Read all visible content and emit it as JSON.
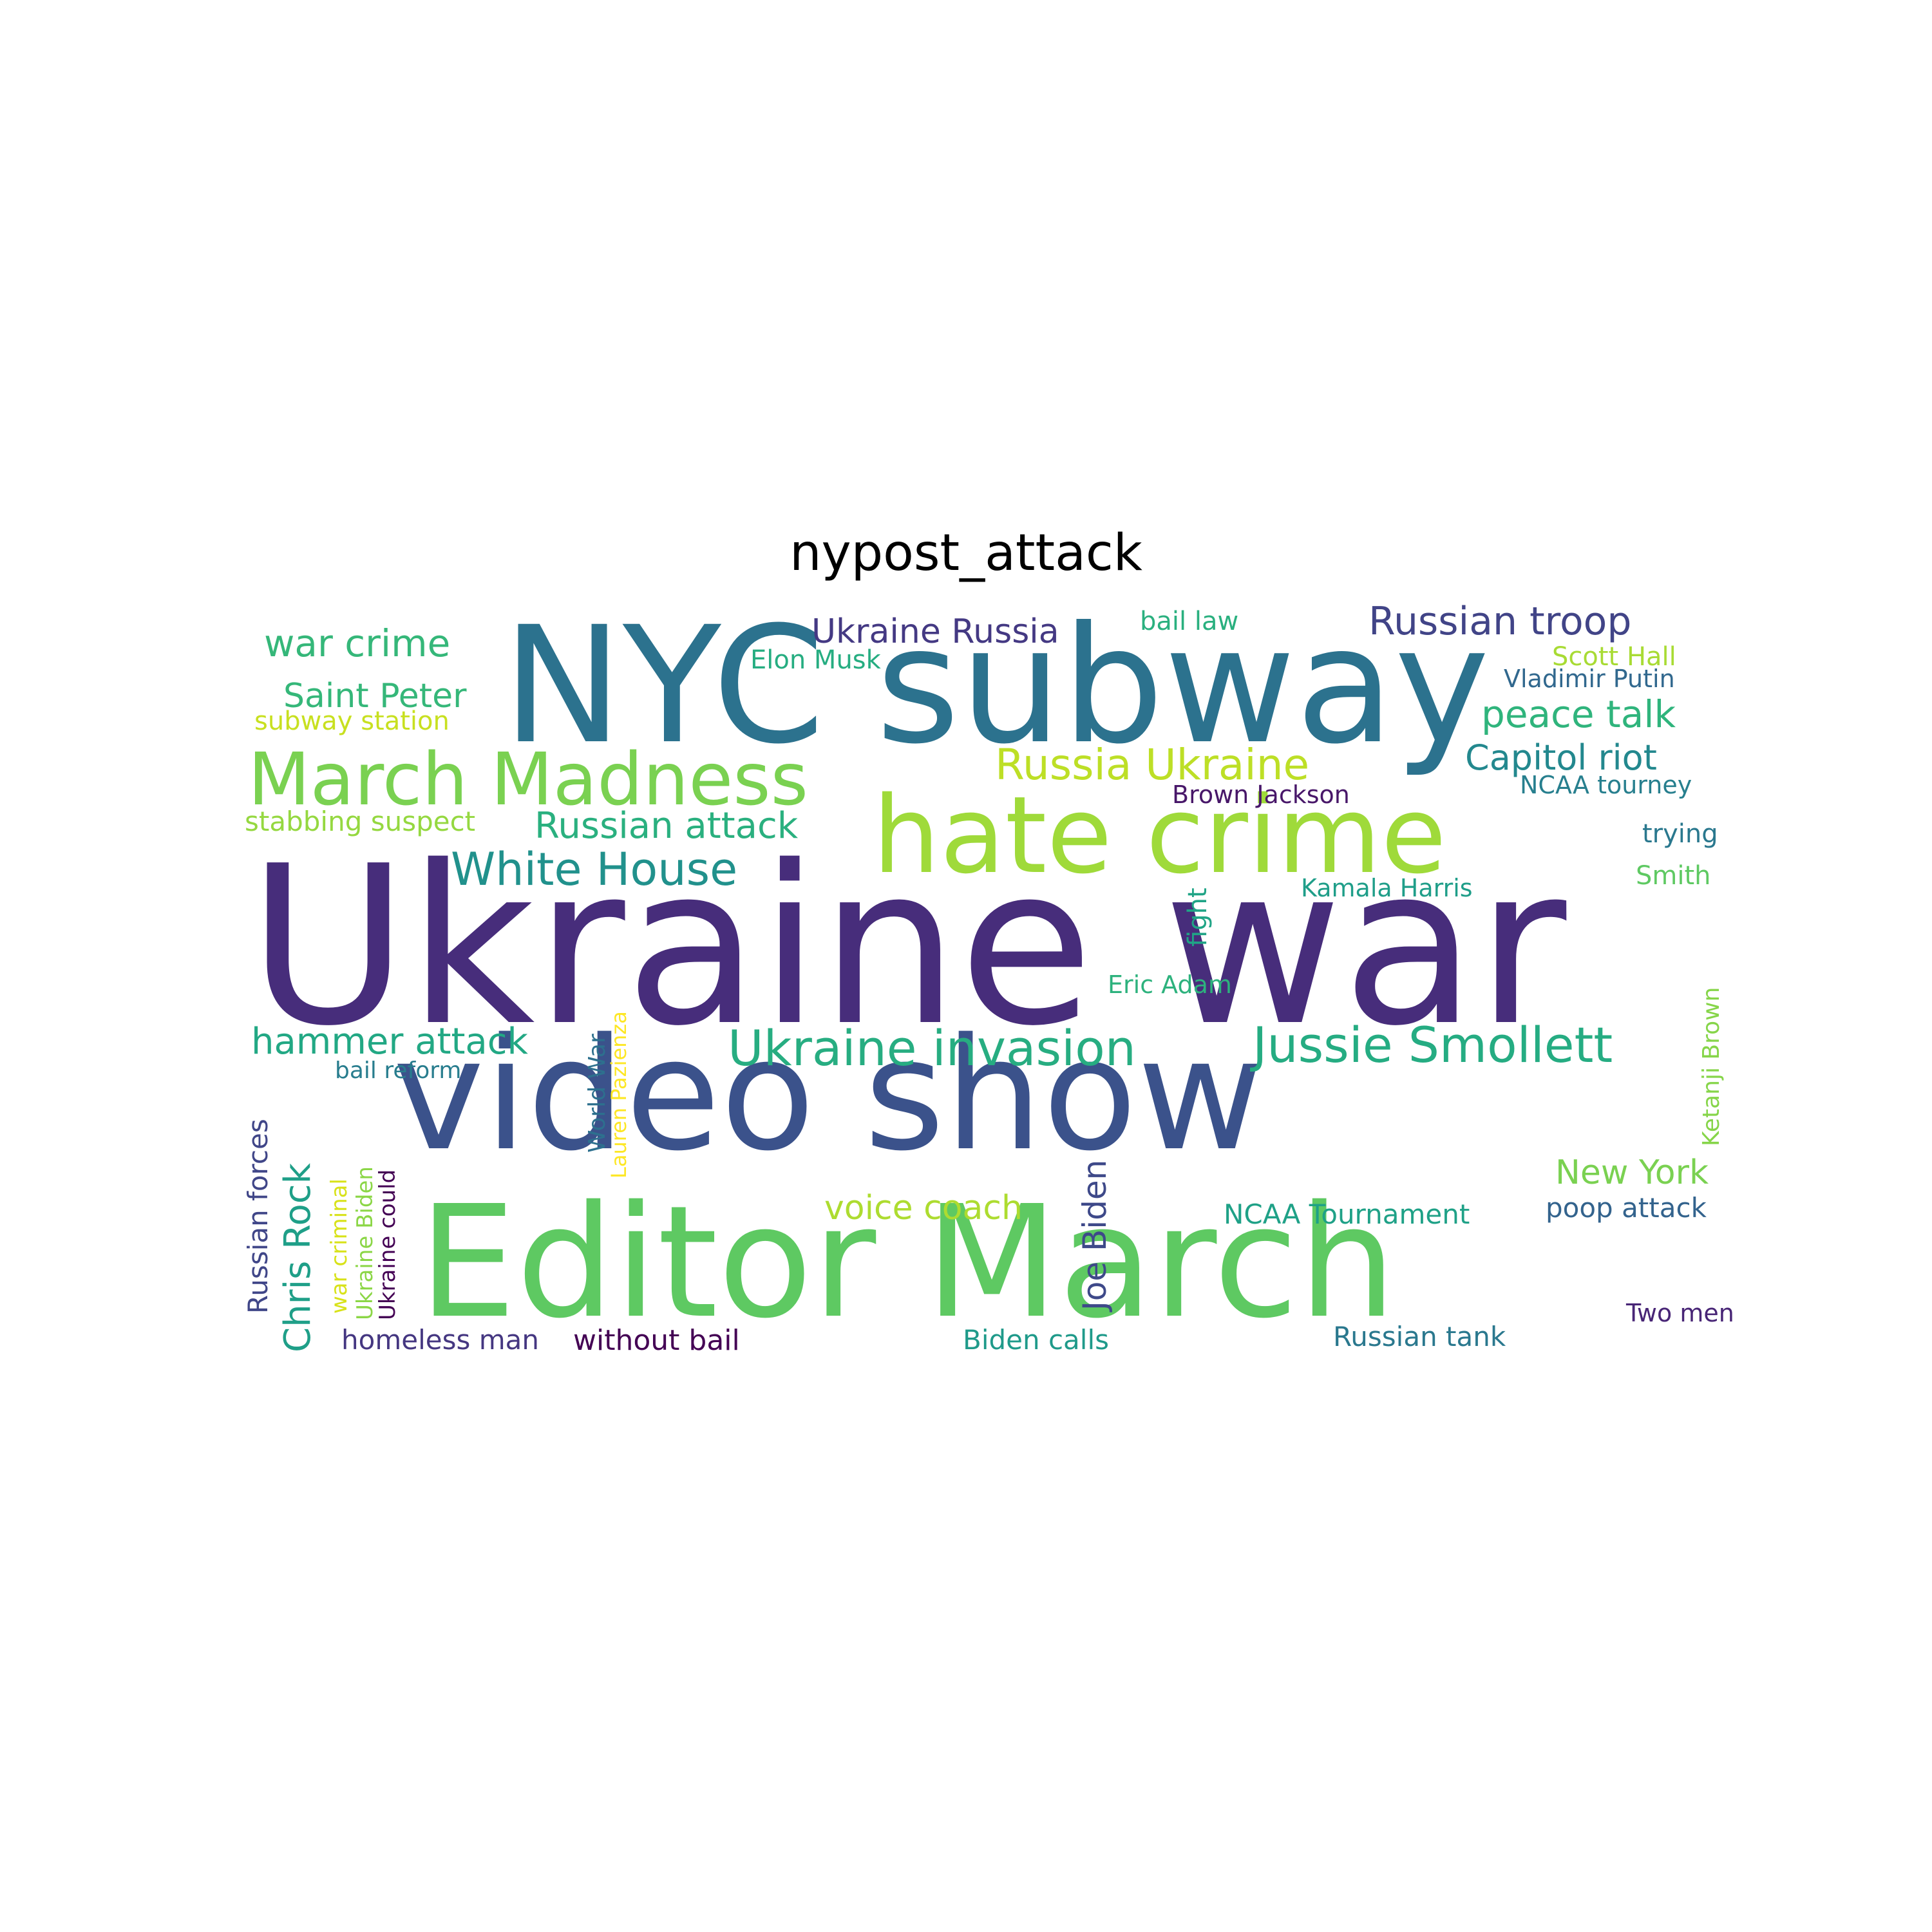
{
  "title": "nypost_attack",
  "words": [
    {
      "text": "Ukraine war",
      "color": "#472d7b",
      "rotated": false
    },
    {
      "text": "NYC subway",
      "color": "#2c728e",
      "rotated": false
    },
    {
      "text": "video show",
      "color": "#3b528b",
      "rotated": false
    },
    {
      "text": "Editor March",
      "color": "#5ec962",
      "rotated": false
    },
    {
      "text": "hate crime",
      "color": "#9fda3a",
      "rotated": false
    },
    {
      "text": "March Madness",
      "color": "#7ad151",
      "rotated": false
    },
    {
      "text": "Ukraine invasion",
      "color": "#27ad81",
      "rotated": false
    },
    {
      "text": "Jussie Smollett",
      "color": "#25ac82",
      "rotated": false
    },
    {
      "text": "White House",
      "color": "#21918c",
      "rotated": false
    },
    {
      "text": "Russia Ukraine",
      "color": "#bddf26",
      "rotated": false
    },
    {
      "text": "Russian attack",
      "color": "#2ab07f",
      "rotated": false
    },
    {
      "text": "Russian troop",
      "color": "#414487",
      "rotated": false
    },
    {
      "text": "war crime",
      "color": "#35b779",
      "rotated": false
    },
    {
      "text": "Ukraine Russia",
      "color": "#443983",
      "rotated": false
    },
    {
      "text": "hammer attack",
      "color": "#22a884",
      "rotated": false
    },
    {
      "text": "Saint Peter",
      "color": "#35b779",
      "rotated": false
    },
    {
      "text": "peace talk",
      "color": "#2fb47c",
      "rotated": false
    },
    {
      "text": "Capitol riot",
      "color": "#23888e",
      "rotated": false
    },
    {
      "text": "voice coach",
      "color": "#addc30",
      "rotated": false
    },
    {
      "text": "New York",
      "color": "#7ad151",
      "rotated": false
    },
    {
      "text": "Chris Rock",
      "color": "#1f9f88",
      "rotated": true
    },
    {
      "text": "Joe Biden",
      "color": "#3e4989",
      "rotated": true
    },
    {
      "text": "Russian forces",
      "color": "#404688",
      "rotated": true
    },
    {
      "text": "stabbing suspect",
      "color": "#95d840",
      "rotated": false
    },
    {
      "text": "subway station",
      "color": "#c8e020",
      "rotated": false
    },
    {
      "text": "Elon Musk",
      "color": "#26ad81",
      "rotated": false
    },
    {
      "text": "bail law",
      "color": "#2ab07f",
      "rotated": false
    },
    {
      "text": "Scott Hall",
      "color": "#a8db34",
      "rotated": false
    },
    {
      "text": "Vladimir Putin",
      "color": "#31688e",
      "rotated": false
    },
    {
      "text": "NCAA tourney",
      "color": "#277f8e",
      "rotated": false
    },
    {
      "text": "Brown Jackson",
      "color": "#481769",
      "rotated": false
    },
    {
      "text": "trying",
      "color": "#2a788e",
      "rotated": false
    },
    {
      "text": "Kamala Harris",
      "color": "#1f9e89",
      "rotated": false
    },
    {
      "text": "Smith",
      "color": "#5ec962",
      "rotated": false
    },
    {
      "text": "fight",
      "color": "#20a486",
      "rotated": true
    },
    {
      "text": "Eric Adam",
      "color": "#2db27d",
      "rotated": false
    },
    {
      "text": "Ketanji Brown",
      "color": "#86d549",
      "rotated": true
    },
    {
      "text": "Lauren Pazienza",
      "color": "#fde725",
      "rotated": true
    },
    {
      "text": "World War",
      "color": "#2d708e",
      "rotated": true
    },
    {
      "text": "bail reform",
      "color": "#287d8e",
      "rotated": false
    },
    {
      "text": "war criminal",
      "color": "#d8e219",
      "rotated": true
    },
    {
      "text": "Ukraine Biden",
      "color": "#8bd646",
      "rotated": true
    },
    {
      "text": "Ukraine could",
      "color": "#440154",
      "rotated": true
    },
    {
      "text": "NCAA Tournament",
      "color": "#1fa187",
      "rotated": false
    },
    {
      "text": "poop attack",
      "color": "#33638d",
      "rotated": false
    },
    {
      "text": "Two men",
      "color": "#482576",
      "rotated": false
    },
    {
      "text": "homeless man",
      "color": "#453781",
      "rotated": false
    },
    {
      "text": "without bail",
      "color": "#440154",
      "rotated": false
    },
    {
      "text": "Biden calls",
      "color": "#1f9a8a",
      "rotated": false
    },
    {
      "text": "Russian tank",
      "color": "#2a788e",
      "rotated": false
    }
  ]
}
